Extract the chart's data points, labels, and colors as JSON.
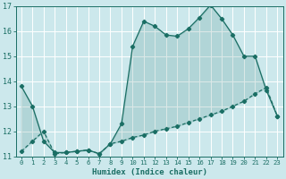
{
  "xlabel": "Humidex (Indice chaleur)",
  "background_color": "#cce8ec",
  "grid_color": "#ffffff",
  "line_color": "#1a6e64",
  "fill_color": "#1a6e64",
  "fill_alpha": 0.15,
  "xlim": [
    -0.5,
    23.5
  ],
  "ylim": [
    11,
    17
  ],
  "xticks": [
    0,
    1,
    2,
    3,
    4,
    5,
    6,
    7,
    8,
    9,
    10,
    11,
    12,
    13,
    14,
    15,
    16,
    17,
    18,
    19,
    20,
    21,
    22,
    23
  ],
  "yticks": [
    11,
    12,
    13,
    14,
    15,
    16,
    17
  ],
  "upper_x": [
    0,
    1,
    2,
    3,
    4,
    5,
    6,
    7,
    8,
    9,
    10,
    11,
    12,
    13,
    14,
    15,
    16,
    17,
    18,
    19,
    20,
    21,
    22,
    23
  ],
  "upper_y": [
    13.8,
    13.0,
    11.6,
    11.15,
    11.15,
    11.2,
    11.25,
    11.1,
    11.5,
    12.3,
    15.4,
    16.4,
    16.2,
    15.85,
    15.8,
    16.1,
    16.55,
    17.05,
    16.5,
    15.85,
    15.0,
    15.0,
    13.65,
    12.6
  ],
  "lower_x": [
    0,
    1,
    2,
    3,
    4,
    5,
    6,
    7,
    8,
    9,
    10,
    11,
    12,
    13,
    14,
    15,
    16,
    17,
    18,
    19,
    20,
    21,
    22,
    23
  ],
  "lower_y": [
    11.2,
    11.6,
    12.0,
    11.1,
    11.15,
    11.2,
    11.25,
    11.1,
    11.5,
    11.6,
    11.75,
    11.85,
    12.0,
    12.1,
    12.2,
    12.35,
    12.5,
    12.65,
    12.8,
    13.0,
    13.2,
    13.5,
    13.75,
    12.6
  ]
}
